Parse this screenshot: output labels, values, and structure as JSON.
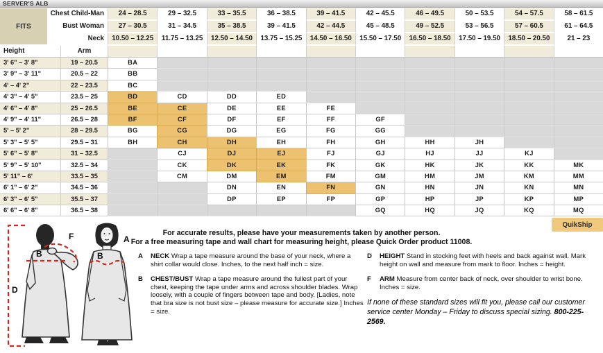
{
  "title": "SERVER'S ALB",
  "table": {
    "fits_label": "FITS",
    "height_label": "Height",
    "arm_label": "Arm",
    "header_rows": [
      {
        "label": "Chest Child-Man",
        "values": [
          "24 – 28.5",
          "29 – 32.5",
          "33 – 35.5",
          "36 – 38.5",
          "39 – 41.5",
          "42 – 45.5",
          "46 – 49.5",
          "50 – 53.5",
          "54 – 57.5",
          "58 – 61.5"
        ]
      },
      {
        "label": "Bust Woman",
        "values": [
          "27 – 30.5",
          "31 – 34.5",
          "35 – 38.5",
          "39 – 41.5",
          "42 – 44.5",
          "45 – 48.5",
          "49 – 52.5",
          "53 – 56.5",
          "57 – 60.5",
          "61 – 64.5"
        ]
      },
      {
        "label": "Neck",
        "values": [
          "10.50 – 12.25",
          "11.75 – 13.25",
          "12.50 – 14.50",
          "13.75 – 15.25",
          "14.50 – 16.50",
          "15.50 – 17.50",
          "16.50 – 18.50",
          "17.50 – 19.50",
          "18.50 – 20.50",
          "21 – 23"
        ]
      }
    ],
    "rows": [
      {
        "height": "3' 6\" – 3' 8\"",
        "arm": "19 – 20.5",
        "cells": [
          "BA",
          "",
          "",
          "",
          "",
          "",
          "",
          "",
          "",
          ""
        ]
      },
      {
        "height": "3' 9\" – 3' 11\"",
        "arm": "20.5 – 22",
        "cells": [
          "BB",
          "",
          "",
          "",
          "",
          "",
          "",
          "",
          "",
          ""
        ]
      },
      {
        "height": "4' – 4' 2\"",
        "arm": "22 – 23.5",
        "cells": [
          "BC",
          "",
          "",
          "",
          "",
          "",
          "",
          "",
          "",
          ""
        ]
      },
      {
        "height": "4' 3\" – 4' 5\"",
        "arm": "23.5 – 25",
        "cells": [
          "BD",
          "CD",
          "DD",
          "ED",
          "",
          "",
          "",
          "",
          "",
          ""
        ]
      },
      {
        "height": "4' 6\" – 4' 8\"",
        "arm": "25 – 26.5",
        "cells": [
          "BE",
          "CE",
          "DE",
          "EE",
          "FE",
          "",
          "",
          "",
          "",
          ""
        ]
      },
      {
        "height": "4' 9\" – 4' 11\"",
        "arm": "26.5 – 28",
        "cells": [
          "BF",
          "CF",
          "DF",
          "EF",
          "FF",
          "GF",
          "",
          "",
          "",
          ""
        ]
      },
      {
        "height": "5' – 5' 2\"",
        "arm": "28 – 29.5",
        "cells": [
          "BG",
          "CG",
          "DG",
          "EG",
          "FG",
          "GG",
          "",
          "",
          "",
          ""
        ]
      },
      {
        "height": "5' 3\" – 5' 5\"",
        "arm": "29.5 – 31",
        "cells": [
          "BH",
          "CH",
          "DH",
          "EH",
          "FH",
          "GH",
          "HH",
          "JH",
          "",
          ""
        ]
      },
      {
        "height": "5' 6\" – 5' 8\"",
        "arm": "31 – 32.5",
        "cells": [
          "",
          "CJ",
          "DJ",
          "EJ",
          "FJ",
          "GJ",
          "HJ",
          "JJ",
          "KJ",
          ""
        ]
      },
      {
        "height": "5' 9\" – 5' 10\"",
        "arm": "32.5 – 34",
        "cells": [
          "",
          "CK",
          "DK",
          "EK",
          "FK",
          "GK",
          "HK",
          "JK",
          "KK",
          "MK"
        ]
      },
      {
        "height": "5' 11\" – 6'",
        "arm": "33.5 – 35",
        "cells": [
          "",
          "CM",
          "DM",
          "EM",
          "FM",
          "GM",
          "HM",
          "JM",
          "KM",
          "MM"
        ]
      },
      {
        "height": "6' 1\" – 6' 2\"",
        "arm": "34.5 – 36",
        "cells": [
          "",
          "",
          "DN",
          "EN",
          "FN",
          "GN",
          "HN",
          "JN",
          "KN",
          "MN"
        ]
      },
      {
        "height": "6' 3\" – 6' 5\"",
        "arm": "35.5 – 37",
        "cells": [
          "",
          "",
          "DP",
          "EP",
          "FP",
          "GP",
          "HP",
          "JP",
          "KP",
          "MP"
        ]
      },
      {
        "height": "6' 6\" – 6' 8\"",
        "arm": "36.5 – 38",
        "cells": [
          "",
          "",
          "",
          "",
          "",
          "GQ",
          "HQ",
          "JQ",
          "KQ",
          "MQ"
        ]
      }
    ],
    "highlighted_cells": [
      "BD",
      "BE",
      "CE",
      "BF",
      "CF",
      "CG",
      "CH",
      "DH",
      "DJ",
      "EJ",
      "DK",
      "EK",
      "EM",
      "FN"
    ]
  },
  "quikship_label": "QuikShip",
  "notice": {
    "line1": "For accurate results, please have your measurements taken by another person.",
    "line2": "For a free measuring tape and wall chart for measuring height, please Quick Order product 11008."
  },
  "instructions": {
    "columns": [
      {
        "items": [
          {
            "letter": "A",
            "term": "NECK",
            "text": "Wrap a tape measure around the base of your neck, where a shirt collar would close. Inches, to the next half inch = size."
          },
          {
            "letter": "B",
            "term": "CHEST/BUST",
            "text": "Wrap a tape measure around the fullest part of your chest, keeping the tape under arms and across shoulder blades. Wrap loosely, with a couple of fingers between tape and body. [Ladies, note that bra size is not bust size – please measure for accurate size.] Inches = size."
          }
        ]
      },
      {
        "items": [
          {
            "letter": "D",
            "term": "HEIGHT",
            "text": "Stand in stocking feet with heels and back against wall. Mark height on wall and measure from mark to floor. Inches = height."
          },
          {
            "letter": "F",
            "term": "ARM",
            "text": "Measure from center back of neck, over shoulder to wrist bone. Inches = size."
          }
        ]
      }
    ]
  },
  "special_note": {
    "text": "If none of these standard sizes will fit you, please call our customer service center Monday – Friday to discuss special sizing. ",
    "phone": "800-225-2569."
  },
  "diagram": {
    "height_label": "D",
    "chest_label": "B",
    "arm_label": "F",
    "neck_label": "A",
    "bust_label": "B"
  },
  "colors": {
    "cream_stripe": "#f1ebd9",
    "fits_tan": "#d8d0b2",
    "highlight_orange": "#ecc271",
    "unavailable_gray": "#d9d9d9",
    "quikship_orange": "#f0c97c",
    "measure_line_red": "#cf2a1b"
  }
}
